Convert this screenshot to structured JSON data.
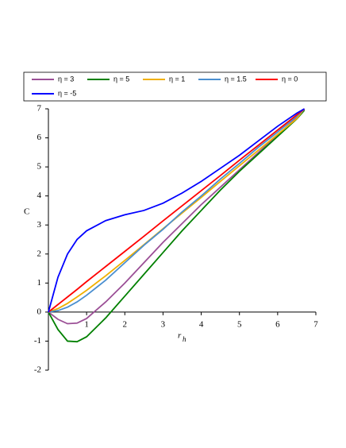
{
  "chart_data": {
    "type": "line",
    "ylabel": "C",
    "xlabel": "r",
    "xlabel_subscript": "h",
    "xlim": [
      0,
      7
    ],
    "ylim": [
      -2,
      7
    ],
    "xticks": [
      1,
      2,
      3,
      4,
      5,
      6,
      7
    ],
    "yticks": [
      -2,
      -1,
      0,
      1,
      2,
      3,
      4,
      5,
      6,
      7
    ],
    "x": [
      0,
      0.25,
      0.5,
      0.75,
      1,
      1.5,
      2,
      2.5,
      3,
      3.5,
      4,
      4.5,
      5,
      5.5,
      6,
      6.5,
      6.7
    ],
    "series": [
      {
        "name": "η = 3",
        "color": "#9b4f96",
        "values": [
          0,
          -0.25,
          -0.4,
          -0.38,
          -0.22,
          0.35,
          1.0,
          1.7,
          2.4,
          3.05,
          3.7,
          4.3,
          4.9,
          5.5,
          6.1,
          6.7,
          6.97
        ]
      },
      {
        "name": "η = 5",
        "color": "#008000",
        "values": [
          0,
          -0.6,
          -1.0,
          -1.02,
          -0.85,
          -0.2,
          0.55,
          1.3,
          2.05,
          2.8,
          3.5,
          4.2,
          4.85,
          5.45,
          6.05,
          6.65,
          6.95
        ]
      },
      {
        "name": "η = 1",
        "color": "#f0b000",
        "values": [
          0,
          0.12,
          0.3,
          0.52,
          0.75,
          1.25,
          1.78,
          2.32,
          2.87,
          3.41,
          3.95,
          4.5,
          5.04,
          5.58,
          6.12,
          6.66,
          7
        ]
      },
      {
        "name": "η = 1.5",
        "color": "#4a8fd0",
        "values": [
          0,
          0.05,
          0.17,
          0.35,
          0.58,
          1.1,
          1.7,
          2.3,
          2.85,
          3.45,
          4.0,
          4.58,
          5.12,
          5.68,
          6.2,
          6.75,
          6.99
        ]
      },
      {
        "name": "η = 0",
        "color": "#ff0000",
        "values": [
          0,
          0.26,
          0.52,
          0.78,
          1.05,
          1.57,
          2.09,
          2.61,
          3.14,
          3.66,
          4.18,
          4.7,
          5.23,
          5.75,
          6.27,
          6.79,
          7
        ]
      },
      {
        "name": "η = -5",
        "color": "#0000ff",
        "values": [
          0,
          1.2,
          2.0,
          2.5,
          2.8,
          3.15,
          3.35,
          3.5,
          3.75,
          4.1,
          4.5,
          4.95,
          5.4,
          5.9,
          6.4,
          6.85,
          7
        ]
      }
    ]
  }
}
